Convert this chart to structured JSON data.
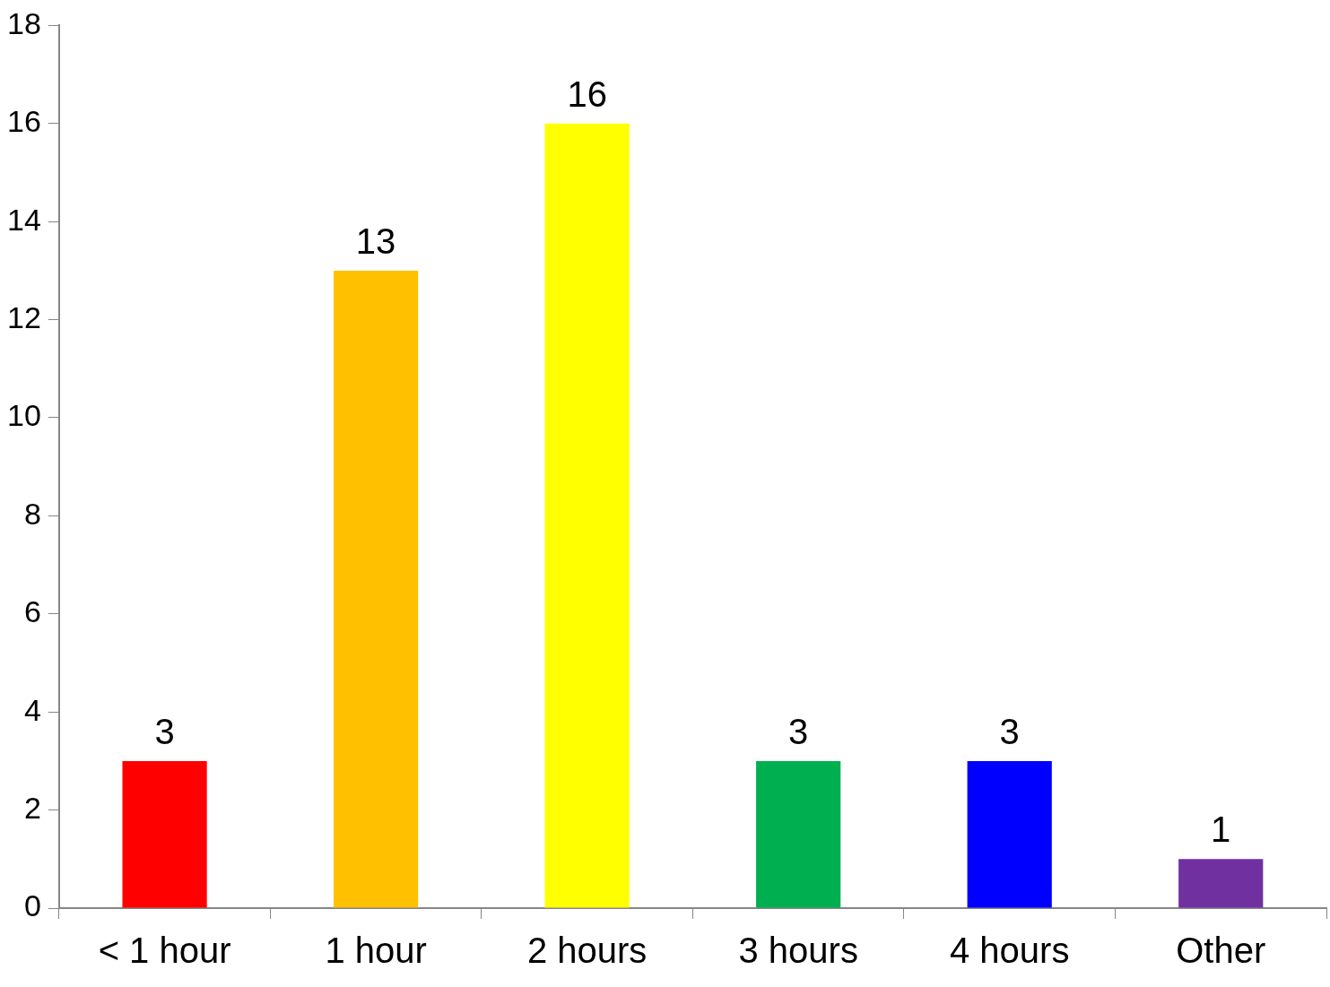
{
  "chart_data": {
    "type": "bar",
    "categories": [
      "< 1 hour",
      "1 hour",
      "2 hours",
      "3 hours",
      "4 hours",
      "Other"
    ],
    "values": [
      3,
      13,
      16,
      3,
      3,
      1
    ],
    "colors": [
      "#ff0000",
      "#ffc000",
      "#ffff00",
      "#00b050",
      "#0000ff",
      "#7030a0"
    ],
    "ylim": [
      0,
      18
    ],
    "yticks": [
      0,
      2,
      4,
      6,
      8,
      10,
      12,
      14,
      16,
      18
    ],
    "grid": false,
    "legend": false,
    "data_labels": true
  }
}
